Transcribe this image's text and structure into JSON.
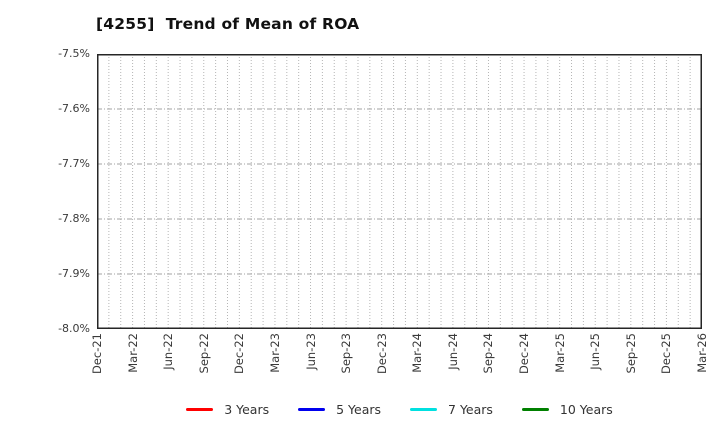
{
  "chart_data": {
    "type": "line",
    "title": "[4255]  Trend of Mean of ROA",
    "x_axis": {
      "tick_labels": [
        "Dec-21",
        "Mar-22",
        "Jun-22",
        "Sep-22",
        "Dec-22",
        "Mar-23",
        "Jun-23",
        "Sep-23",
        "Dec-23",
        "Mar-24",
        "Jun-24",
        "Sep-24",
        "Dec-24",
        "Mar-25",
        "Jun-25",
        "Sep-25",
        "Dec-25",
        "Mar-26"
      ],
      "months_between_labeled_ticks": 3,
      "total_month_intervals": 51,
      "minor_gridlines": "monthly"
    },
    "y_axis": {
      "tick_labels": [
        "-7.5%",
        "-7.6%",
        "-7.7%",
        "-7.8%",
        "-7.9%",
        "-8.0%"
      ],
      "max": -7.5,
      "min": -8.0,
      "unit": "%"
    },
    "ylim": [
      -8.0,
      -7.5
    ],
    "grid": {
      "enabled": true,
      "vertical_style": "dotted",
      "horizontal_style": "dash-dot",
      "vertical_color": "#b5b5b5",
      "horizontal_color": "#a3a3a3",
      "spine_color": "#262626"
    },
    "series": [
      {
        "name": "3 Years",
        "color": "#ff0000",
        "values": []
      },
      {
        "name": "5 Years",
        "color": "#0000ee",
        "values": []
      },
      {
        "name": "7 Years",
        "color": "#00e0e0",
        "values": []
      },
      {
        "name": "10 Years",
        "color": "#008000",
        "values": []
      }
    ],
    "legend_position": "bottom-center",
    "plotted_data_note": "no data lines visible in plot area"
  },
  "colors": {
    "background": "#ffffff",
    "title_text": "#111111",
    "tick_text": "#3a3a3a",
    "legend_text": "#333333"
  }
}
